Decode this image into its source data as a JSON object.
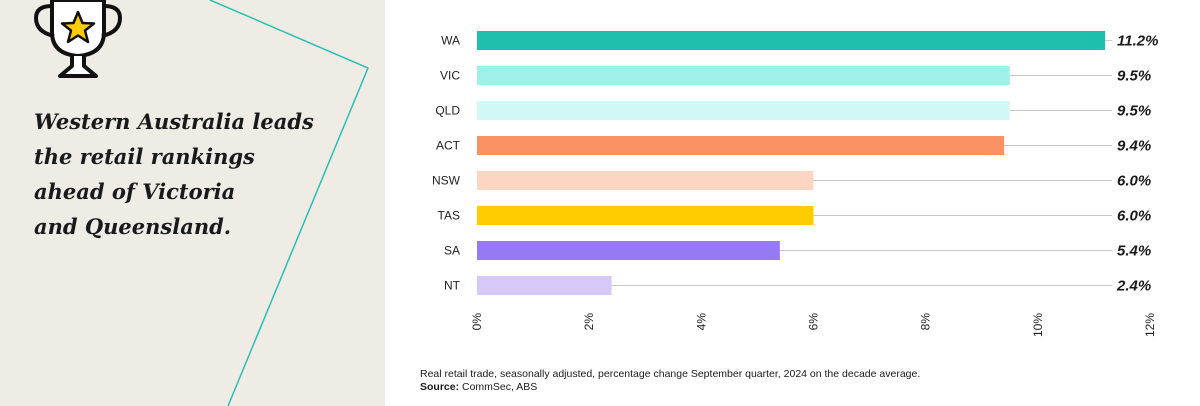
{
  "headline": {
    "lines": [
      "Western Australia leads",
      "the retail rankings",
      "ahead of Victoria",
      "and Queensland."
    ]
  },
  "icons": {
    "trophy": "trophy-star-icon"
  },
  "colors": {
    "panel_bg": "#efece6",
    "accent_line": "#2bbfb0"
  },
  "chart_data": {
    "type": "bar",
    "orientation": "horizontal",
    "categories": [
      "WA",
      "VIC",
      "QLD",
      "ACT",
      "NSW",
      "TAS",
      "SA",
      "NT"
    ],
    "values": [
      11.2,
      9.5,
      9.5,
      9.4,
      6.0,
      6.0,
      5.4,
      2.4
    ],
    "value_labels": [
      "11.2%",
      "9.5%",
      "9.5%",
      "9.4%",
      "6.0%",
      "6.0%",
      "5.4%",
      "2.4%"
    ],
    "colors": [
      "#1fbfae",
      "#9ff0e8",
      "#d2f8f6",
      "#fa9264",
      "#fdd5c3",
      "#fecc00",
      "#9579f5",
      "#d6c8fb"
    ],
    "x_ticks": [
      0,
      2,
      4,
      6,
      8,
      10,
      12
    ],
    "x_tick_labels": [
      "0%",
      "2%",
      "4%",
      "6%",
      "8%",
      "10%",
      "12%"
    ],
    "xlim": [
      0,
      12
    ],
    "title": "",
    "xlabel": "",
    "ylabel": ""
  },
  "footer": {
    "note": "Real retail trade, seasonally adjusted, percentage change September quarter, 2024 on the decade average.",
    "source_label": "Source:",
    "source_value": " CommSec, ABS"
  }
}
